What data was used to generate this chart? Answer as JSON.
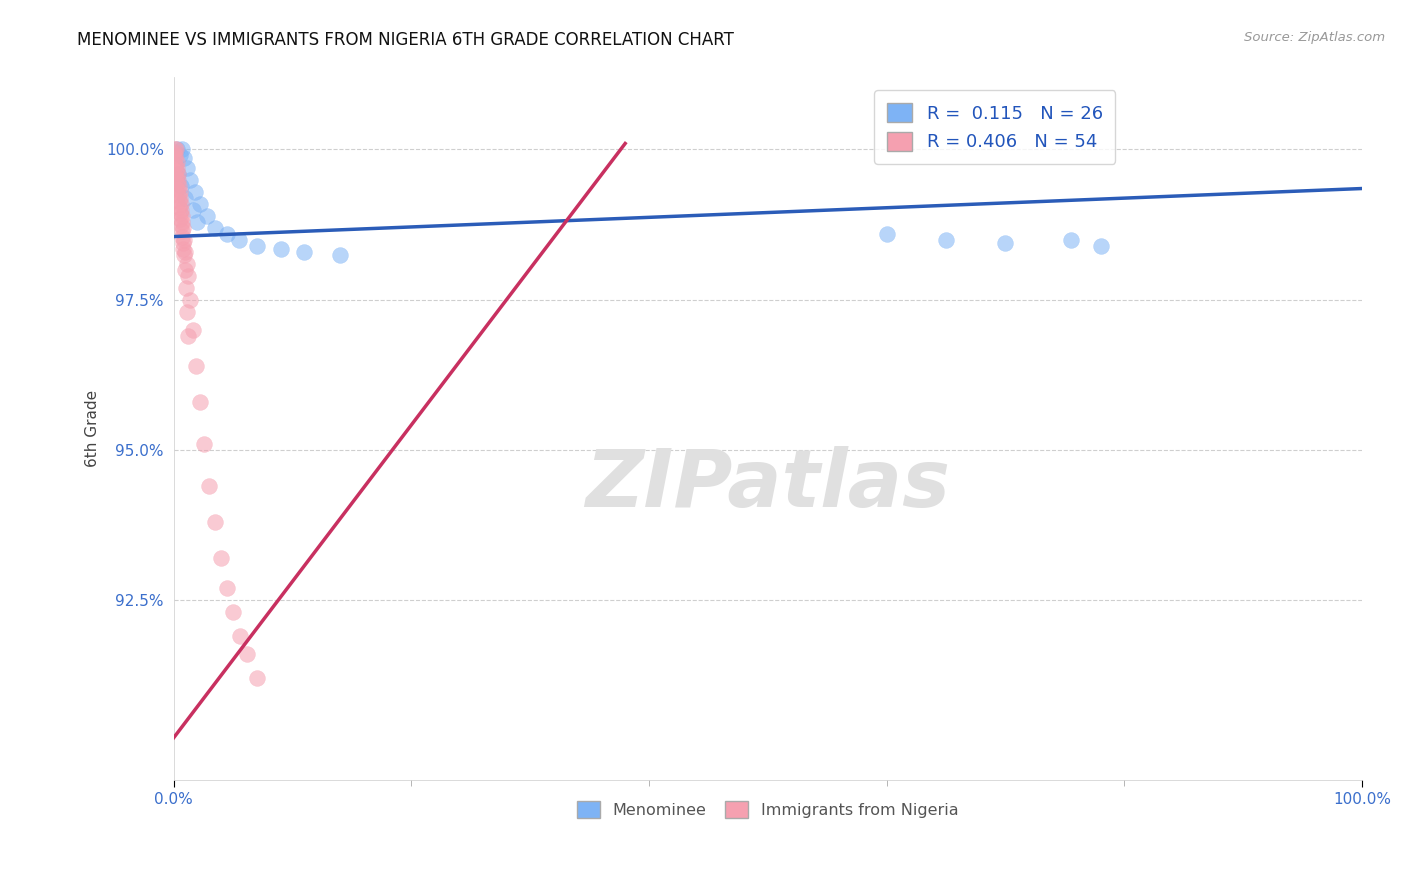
{
  "title": "MENOMINEE VS IMMIGRANTS FROM NIGERIA 6TH GRADE CORRELATION CHART",
  "source_text": "Source: ZipAtlas.com",
  "ylabel": "6th Grade",
  "xlim": [
    0,
    100
  ],
  "ylim": [
    89.5,
    101.2
  ],
  "yticks": [
    92.5,
    95.0,
    97.5,
    100.0
  ],
  "ytick_labels": [
    "92.5%",
    "95.0%",
    "97.5%",
    "100.0%"
  ],
  "legend_blue_label": "R =  0.115   N = 26",
  "legend_pink_label": "R = 0.406   N = 54",
  "blue_color": "#7EB3F5",
  "pink_color": "#F5A0B0",
  "blue_line_color": "#2B5CB8",
  "pink_line_color": "#C83060",
  "watermark_text": "ZIPatlas",
  "watermark_color": "#E0E0E0",
  "blue_line_x": [
    0,
    100
  ],
  "blue_line_y": [
    98.55,
    99.35
  ],
  "pink_line_x": [
    0,
    38
  ],
  "pink_line_y": [
    90.2,
    100.1
  ],
  "blue_scatter_x": [
    0.3,
    0.5,
    0.7,
    0.9,
    1.1,
    1.4,
    1.8,
    2.2,
    2.8,
    3.5,
    4.5,
    5.5,
    7.0,
    9.0,
    11.0,
    14.0,
    0.4,
    0.6,
    1.0,
    1.6,
    2.0,
    60.0,
    65.0,
    70.0,
    75.5,
    78.0
  ],
  "blue_scatter_y": [
    100.0,
    99.9,
    100.0,
    99.85,
    99.7,
    99.5,
    99.3,
    99.1,
    98.9,
    98.7,
    98.6,
    98.5,
    98.4,
    98.35,
    98.3,
    98.25,
    99.6,
    99.4,
    99.2,
    99.0,
    98.8,
    98.6,
    98.5,
    98.45,
    98.5,
    98.4
  ],
  "pink_scatter_x": [
    0.1,
    0.15,
    0.2,
    0.25,
    0.3,
    0.35,
    0.4,
    0.45,
    0.5,
    0.55,
    0.6,
    0.65,
    0.7,
    0.75,
    0.8,
    0.9,
    1.0,
    1.1,
    1.2,
    1.4,
    1.6,
    1.9,
    2.2,
    2.6,
    3.0,
    3.5,
    4.0,
    4.5,
    5.0,
    5.6,
    6.2,
    7.0,
    0.05,
    0.08,
    0.12,
    0.18,
    0.22,
    0.28,
    0.32,
    0.38,
    0.42,
    0.48,
    0.52,
    0.58,
    0.62,
    0.68,
    0.72,
    0.78,
    0.82,
    0.88,
    0.95,
    1.05,
    1.15,
    1.25
  ],
  "pink_scatter_y": [
    100.0,
    99.9,
    100.0,
    99.8,
    99.7,
    99.6,
    99.5,
    99.4,
    99.3,
    99.2,
    99.1,
    99.0,
    98.9,
    98.8,
    98.7,
    98.5,
    98.3,
    98.1,
    97.9,
    97.5,
    97.0,
    96.4,
    95.8,
    95.1,
    94.4,
    93.8,
    93.2,
    92.7,
    92.3,
    91.9,
    91.6,
    91.2,
    99.95,
    99.85,
    99.75,
    99.65,
    99.55,
    99.45,
    99.35,
    99.25,
    99.15,
    99.05,
    98.95,
    98.85,
    98.75,
    98.65,
    98.55,
    98.45,
    98.35,
    98.25,
    98.0,
    97.7,
    97.3,
    96.9
  ]
}
